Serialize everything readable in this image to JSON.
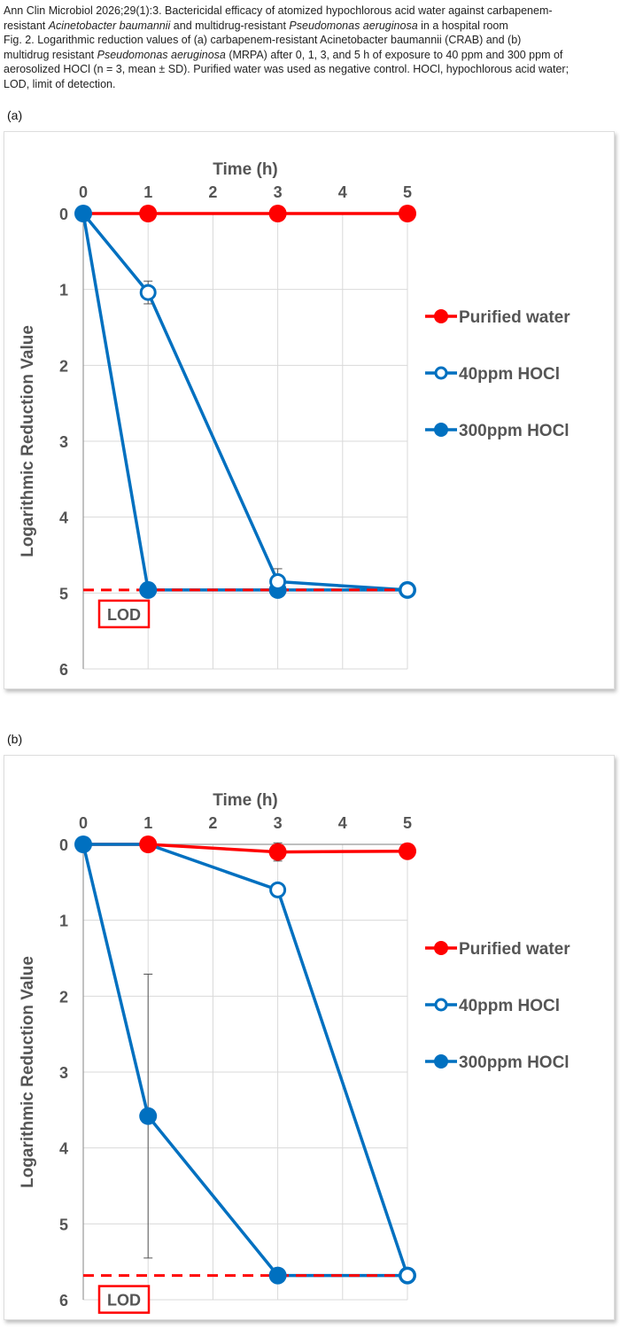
{
  "caption": {
    "line1_a": "Ann Clin Microbiol 2026;29(1):3. Bactericidal efficacy of atomized hypochlorous acid water against carbapenem-",
    "line2_a": "resistant ",
    "line2_b": "Acinetobacter baumannii",
    "line2_c": " and multidrug-resistant ",
    "line2_d": "Pseudomonas aeruginosa",
    "line2_e": " in a hospital room",
    "line3": "Fig. 2. Logarithmic reduction values of (a) carbapenem-resistant Acinetobacter baumannii (CRAB) and (b)",
    "line4_a": "multidrug resistant ",
    "line4_b": "Pseudomonas aeruginosa",
    "line4_c": " (MRPA) after 0, 1, 3, and 5 h of exposure to 40 ppm and 300 ppm of",
    "line5": "aerosolized HOCl (n = 3, mean ± SD). Purified water was used as negative control. HOCl, hypochlorous acid water;",
    "line6": "LOD, limit of detection."
  },
  "colors": {
    "red": "#ff0000",
    "blue": "#0070c0",
    "text": "#595959",
    "grid": "#d9d9d9"
  },
  "chart_data": [
    {
      "panel": "(a)",
      "type": "line",
      "xlabel": "Time (h)",
      "ylabel": "Logarithmic Reduction Value",
      "xlim": [
        0,
        5
      ],
      "ylim": [
        0,
        6
      ],
      "y_inverted": true,
      "x_axis_position": "top",
      "xticks": [
        0,
        1,
        2,
        3,
        4,
        5
      ],
      "yticks": [
        0,
        1,
        2,
        3,
        4,
        5,
        6
      ],
      "grid": true,
      "legend": "right",
      "lod": {
        "label": "LOD",
        "value": 4.96
      },
      "series": [
        {
          "name": "Purified water",
          "color": "#ff0000",
          "marker": "filled",
          "x": [
            0,
            1,
            3,
            5
          ],
          "y": [
            0,
            0,
            0,
            0
          ],
          "err": [
            0,
            0,
            0.08,
            0.05
          ]
        },
        {
          "name": "40ppm HOCl",
          "color": "#0070c0",
          "marker": "open",
          "x": [
            0,
            1,
            3,
            5
          ],
          "y": [
            0,
            1.04,
            4.85,
            4.96
          ],
          "err": [
            0,
            0.15,
            0.17,
            0
          ]
        },
        {
          "name": "300ppm HOCl",
          "color": "#0070c0",
          "marker": "filled",
          "x": [
            0,
            1,
            3,
            5
          ],
          "y": [
            0,
            4.96,
            4.96,
            4.96
          ],
          "err": [
            0,
            0,
            0,
            0
          ]
        }
      ]
    },
    {
      "panel": "(b)",
      "type": "line",
      "xlabel": "Time (h)",
      "ylabel": "Logarithmic Reduction Value",
      "xlim": [
        0,
        5
      ],
      "ylim": [
        0,
        6
      ],
      "y_inverted": true,
      "x_axis_position": "top",
      "xticks": [
        0,
        1,
        2,
        3,
        4,
        5
      ],
      "yticks": [
        0,
        1,
        2,
        3,
        4,
        5,
        6
      ],
      "grid": true,
      "legend": "right",
      "lod": {
        "label": "LOD",
        "value": 5.68
      },
      "series": [
        {
          "name": "Purified water",
          "color": "#ff0000",
          "marker": "filled",
          "x": [
            0,
            1,
            3,
            5
          ],
          "y": [
            0,
            0,
            0.1,
            0.09
          ],
          "err": [
            0,
            0,
            0.12,
            0
          ]
        },
        {
          "name": "40ppm HOCl",
          "color": "#0070c0",
          "marker": "open",
          "x": [
            0,
            1,
            3,
            5
          ],
          "y": [
            0,
            0,
            0.6,
            5.68
          ],
          "err": [
            0,
            0,
            0,
            0
          ]
        },
        {
          "name": "300ppm HOCl",
          "color": "#0070c0",
          "marker": "filled",
          "x": [
            0,
            1,
            3,
            5
          ],
          "y": [
            0,
            3.58,
            5.68,
            5.68
          ],
          "err": [
            0,
            1.87,
            0,
            0
          ]
        }
      ]
    }
  ]
}
